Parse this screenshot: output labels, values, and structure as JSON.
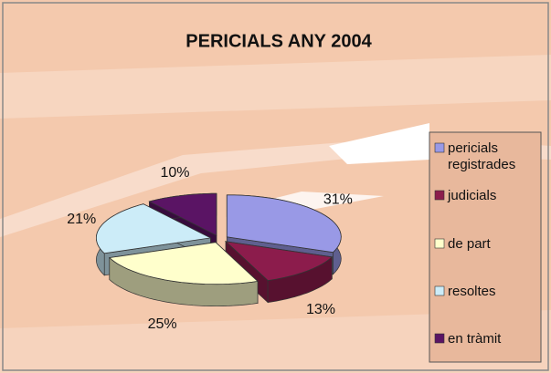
{
  "chart_data": {
    "type": "pie",
    "title": "PERICIALS ANY 2004",
    "categories": [
      "pericials registrades",
      "judicials",
      "de part",
      "resoltes",
      "en tràmit"
    ],
    "values": [
      31,
      13,
      25,
      21,
      10
    ],
    "value_labels": [
      "31%",
      "13%",
      "25%",
      "21%",
      "10%"
    ],
    "colors": [
      "#9999e6",
      "#8c1c4c",
      "#ffffcc",
      "#ccecf8",
      "#5a1464"
    ],
    "legend": "right"
  }
}
